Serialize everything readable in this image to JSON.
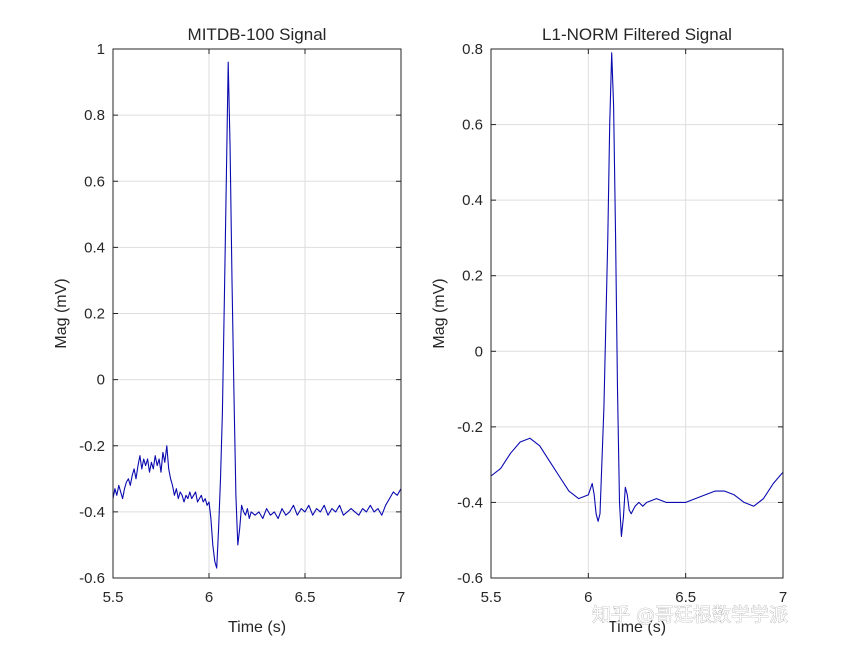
{
  "chart_data": [
    {
      "type": "line",
      "title": "MITDB-100 Signal",
      "xlabel": "Time (s)",
      "ylabel": "Mag (mV)",
      "xlim": [
        5.5,
        7
      ],
      "ylim": [
        -0.6,
        1
      ],
      "xticks": [
        5.5,
        6,
        6.5,
        7
      ],
      "yticks": [
        -0.6,
        -0.4,
        -0.2,
        0,
        0.2,
        0.4,
        0.6,
        0.8,
        1
      ],
      "xtick_labels": [
        "5.5",
        "6",
        "6.5",
        "7"
      ],
      "ytick_labels": [
        "-0.6",
        "-0.4",
        "-0.2",
        "0",
        "0.2",
        "0.4",
        "0.6",
        "0.8",
        "1"
      ],
      "grid": true,
      "series": [
        {
          "color": "#0a0ab0",
          "x": [
            5.5,
            5.51,
            5.52,
            5.53,
            5.54,
            5.55,
            5.56,
            5.57,
            5.58,
            5.59,
            5.6,
            5.61,
            5.62,
            5.63,
            5.64,
            5.65,
            5.66,
            5.67,
            5.68,
            5.69,
            5.7,
            5.71,
            5.72,
            5.73,
            5.74,
            5.75,
            5.76,
            5.77,
            5.78,
            5.79,
            5.8,
            5.81,
            5.82,
            5.83,
            5.84,
            5.85,
            5.86,
            5.87,
            5.88,
            5.89,
            5.9,
            5.91,
            5.92,
            5.93,
            5.94,
            5.95,
            5.96,
            5.97,
            5.98,
            5.99,
            6.0,
            6.01,
            6.02,
            6.03,
            6.04,
            6.05,
            6.06,
            6.07,
            6.08,
            6.09,
            6.1,
            6.11,
            6.12,
            6.13,
            6.14,
            6.15,
            6.16,
            6.17,
            6.18,
            6.19,
            6.2,
            6.21,
            6.22,
            6.24,
            6.26,
            6.28,
            6.3,
            6.32,
            6.34,
            6.36,
            6.38,
            6.4,
            6.42,
            6.44,
            6.46,
            6.48,
            6.5,
            6.52,
            6.54,
            6.56,
            6.58,
            6.6,
            6.62,
            6.64,
            6.66,
            6.68,
            6.7,
            6.72,
            6.74,
            6.76,
            6.78,
            6.8,
            6.82,
            6.84,
            6.86,
            6.88,
            6.9,
            6.92,
            6.94,
            6.96,
            6.98,
            7.0
          ],
          "y": [
            -0.36,
            -0.33,
            -0.35,
            -0.32,
            -0.34,
            -0.36,
            -0.33,
            -0.31,
            -0.3,
            -0.32,
            -0.29,
            -0.27,
            -0.3,
            -0.26,
            -0.23,
            -0.27,
            -0.24,
            -0.26,
            -0.24,
            -0.28,
            -0.25,
            -0.27,
            -0.23,
            -0.26,
            -0.24,
            -0.28,
            -0.22,
            -0.25,
            -0.2,
            -0.27,
            -0.3,
            -0.32,
            -0.35,
            -0.33,
            -0.36,
            -0.34,
            -0.35,
            -0.37,
            -0.35,
            -0.36,
            -0.34,
            -0.36,
            -0.35,
            -0.34,
            -0.37,
            -0.36,
            -0.35,
            -0.37,
            -0.36,
            -0.38,
            -0.37,
            -0.42,
            -0.5,
            -0.55,
            -0.57,
            -0.45,
            -0.3,
            -0.1,
            0.25,
            0.6,
            0.96,
            0.7,
            0.3,
            -0.05,
            -0.35,
            -0.5,
            -0.45,
            -0.38,
            -0.4,
            -0.41,
            -0.39,
            -0.42,
            -0.4,
            -0.41,
            -0.4,
            -0.42,
            -0.39,
            -0.41,
            -0.4,
            -0.42,
            -0.39,
            -0.41,
            -0.4,
            -0.38,
            -0.41,
            -0.39,
            -0.4,
            -0.38,
            -0.41,
            -0.39,
            -0.4,
            -0.38,
            -0.41,
            -0.39,
            -0.4,
            -0.38,
            -0.41,
            -0.4,
            -0.39,
            -0.4,
            -0.41,
            -0.39,
            -0.4,
            -0.38,
            -0.4,
            -0.39,
            -0.41,
            -0.38,
            -0.36,
            -0.34,
            -0.35,
            -0.33
          ]
        }
      ]
    },
    {
      "type": "line",
      "title": "L1-NORM Filtered Signal",
      "xlabel": "Time (s)",
      "ylabel": "Mag (mV)",
      "xlim": [
        5.5,
        7
      ],
      "ylim": [
        -0.6,
        0.8
      ],
      "xticks": [
        5.5,
        6,
        6.5,
        7
      ],
      "yticks": [
        -0.6,
        -0.4,
        -0.2,
        0,
        0.2,
        0.4,
        0.6,
        0.8
      ],
      "xtick_labels": [
        "5.5",
        "6",
        "6.5",
        "7"
      ],
      "ytick_labels": [
        "-0.6",
        "-0.4",
        "-0.2",
        "0",
        "0.2",
        "0.4",
        "0.6",
        "0.8"
      ],
      "grid": true,
      "series": [
        {
          "color": "#0a0ab0",
          "x": [
            5.5,
            5.55,
            5.6,
            5.65,
            5.7,
            5.75,
            5.8,
            5.85,
            5.9,
            5.95,
            6.0,
            6.02,
            6.03,
            6.04,
            6.05,
            6.06,
            6.08,
            6.1,
            6.11,
            6.12,
            6.13,
            6.14,
            6.15,
            6.16,
            6.17,
            6.18,
            6.19,
            6.2,
            6.21,
            6.22,
            6.23,
            6.24,
            6.26,
            6.28,
            6.3,
            6.35,
            6.4,
            6.45,
            6.5,
            6.55,
            6.6,
            6.65,
            6.7,
            6.75,
            6.8,
            6.85,
            6.9,
            6.95,
            7.0
          ],
          "y": [
            -0.33,
            -0.31,
            -0.27,
            -0.24,
            -0.23,
            -0.25,
            -0.29,
            -0.33,
            -0.37,
            -0.39,
            -0.38,
            -0.35,
            -0.38,
            -0.43,
            -0.45,
            -0.43,
            -0.15,
            0.3,
            0.6,
            0.79,
            0.65,
            0.3,
            -0.1,
            -0.4,
            -0.49,
            -0.44,
            -0.36,
            -0.38,
            -0.42,
            -0.43,
            -0.42,
            -0.41,
            -0.4,
            -0.41,
            -0.4,
            -0.39,
            -0.4,
            -0.4,
            -0.4,
            -0.39,
            -0.38,
            -0.37,
            -0.37,
            -0.38,
            -0.4,
            -0.41,
            -0.39,
            -0.35,
            -0.32
          ]
        }
      ]
    }
  ],
  "watermark": "知乎 @哥廷根数学学派"
}
